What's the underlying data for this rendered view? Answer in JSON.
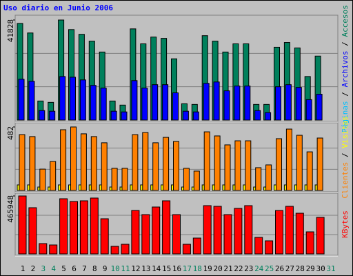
{
  "title": "Uso diario en Junio 2006",
  "categories": [
    "1",
    "2",
    "3",
    "4",
    "5",
    "6",
    "7",
    "8",
    "9",
    "10",
    "11",
    "12",
    "13",
    "14",
    "15",
    "16",
    "17",
    "18",
    "19",
    "20",
    "21",
    "22",
    "23",
    "24",
    "25",
    "26",
    "27",
    "28",
    "29",
    "30",
    "31"
  ],
  "weekend_categories": [
    "3",
    "4",
    "10",
    "11",
    "17",
    "18",
    "24",
    "25",
    "31"
  ],
  "weekday_color": "#000000",
  "weekend_color": "#00805c",
  "chart_data": [
    {
      "type": "bar",
      "ylim": [
        0,
        41828
      ],
      "yticks": [
        41828
      ],
      "grid": true,
      "legend": [
        {
          "text": "Páginas",
          "color": "#00c0ff"
        },
        {
          "text": "Archivos",
          "color": "#0000ff"
        },
        {
          "text": "Accesos",
          "color": "#00805c"
        }
      ],
      "series": [
        {
          "name": "Accesos",
          "color": "#00805c",
          "values": [
            40400,
            36420,
            7970,
            7400,
            41828,
            37840,
            35850,
            33000,
            28450,
            7970,
            6260,
            38130,
            31870,
            34710,
            34140,
            25610,
            6830,
            6540,
            35280,
            33000,
            28450,
            31870,
            31870,
            6540,
            6540,
            30450,
            32440,
            30160,
            18210,
            26750,
            null
          ]
        },
        {
          "name": "Archivos",
          "color": "#0000ff",
          "values": [
            17070,
            16220,
            3980,
            3700,
            18210,
            17920,
            16790,
            14510,
            13370,
            3700,
            3410,
            16500,
            13370,
            14800,
            14800,
            11380,
            3700,
            3410,
            15360,
            15930,
            12230,
            14230,
            14230,
            3980,
            3130,
            13940,
            14800,
            13660,
            8540,
            10810,
            null
          ]
        }
      ]
    },
    {
      "type": "bar",
      "ylim": [
        0,
        482
      ],
      "yticks": [
        482
      ],
      "grid": true,
      "legend": [
        {
          "text": "Clientes",
          "color": "#ff8000"
        },
        {
          "text": "Visitas",
          "color": "#ffff00"
        }
      ],
      "series": [
        {
          "name": "Visitas",
          "color": "#ffff00",
          "values": [
            42,
            42,
            26,
            26,
            42,
            42,
            42,
            42,
            42,
            26,
            26,
            42,
            42,
            42,
            42,
            42,
            26,
            26,
            42,
            42,
            42,
            42,
            42,
            26,
            26,
            42,
            42,
            42,
            42,
            42,
            null
          ]
        },
        {
          "name": "Clientes",
          "color": "#ff8000",
          "values": [
            424,
            409,
            162,
            220,
            461,
            482,
            430,
            409,
            362,
            168,
            168,
            424,
            440,
            362,
            403,
            372,
            168,
            147,
            445,
            414,
            346,
            377,
            377,
            173,
            194,
            393,
            466,
            419,
            293,
            398,
            null
          ]
        }
      ]
    },
    {
      "type": "bar",
      "ylim": [
        0,
        465948
      ],
      "yticks": [
        465948
      ],
      "grid": true,
      "legend": [
        {
          "text": "KBytes",
          "color": "#ff0000"
        }
      ],
      "series": [
        {
          "name": "KBytes",
          "color": "#ff0000",
          "values": [
            465948,
            371650,
            83200,
            72110,
            443760,
            421570,
            427120,
            449310,
            282900,
            61020,
            77660,
            349460,
            316180,
            377200,
            427120,
            316180,
            77660,
            127580,
            388290,
            382740,
            316180,
            366100,
            388290,
            133130,
            105390,
            349460,
            382740,
            327270,
            177500,
            293990,
            null
          ]
        }
      ]
    }
  ]
}
